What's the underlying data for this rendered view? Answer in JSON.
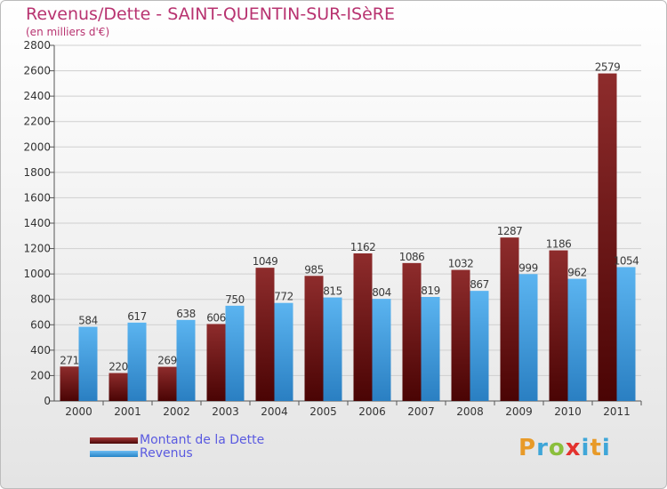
{
  "header": {
    "title": "Revenus/Dette - SAINT-QUENTIN-SUR-ISèRE",
    "subtitle": "(en milliers d'€)"
  },
  "legend": [
    {
      "label": "Montant de la Dette",
      "color": "#7a1d1d"
    },
    {
      "label": "Revenus",
      "color": "#3e9fe4"
    }
  ],
  "logo": {
    "letters": [
      "P",
      "r",
      "o",
      "x",
      "i",
      "t",
      "i"
    ]
  },
  "colors": {
    "debt": "#7a1d1d",
    "revenue": "#3e9fe4",
    "label": "#3a3a3a"
  },
  "chart_data": {
    "type": "bar",
    "title": "Revenus/Dette - SAINT-QUENTIN-SUR-ISèRE",
    "ylabel": "(en milliers d'€)",
    "xlabel": "",
    "categories": [
      "2000",
      "2001",
      "2002",
      "2003",
      "2004",
      "2005",
      "2006",
      "2007",
      "2008",
      "2009",
      "2010",
      "2011"
    ],
    "ylim": [
      0,
      2800
    ],
    "yticks": [
      "0",
      "200",
      "400",
      "600",
      "800",
      "1000",
      "1200",
      "1400",
      "1600",
      "1800",
      "2000",
      "2200",
      "2400",
      "2600",
      "2800"
    ],
    "grid": true,
    "legend_position": "bottom-left",
    "series": [
      {
        "name": "Montant de la Dette",
        "values": [
          271,
          220,
          269,
          606,
          1049,
          985,
          1162,
          1086,
          1032,
          1287,
          1186,
          2579
        ]
      },
      {
        "name": "Revenus",
        "values": [
          584,
          617,
          638,
          750,
          772,
          815,
          804,
          819,
          867,
          999,
          962,
          1054
        ]
      }
    ]
  }
}
